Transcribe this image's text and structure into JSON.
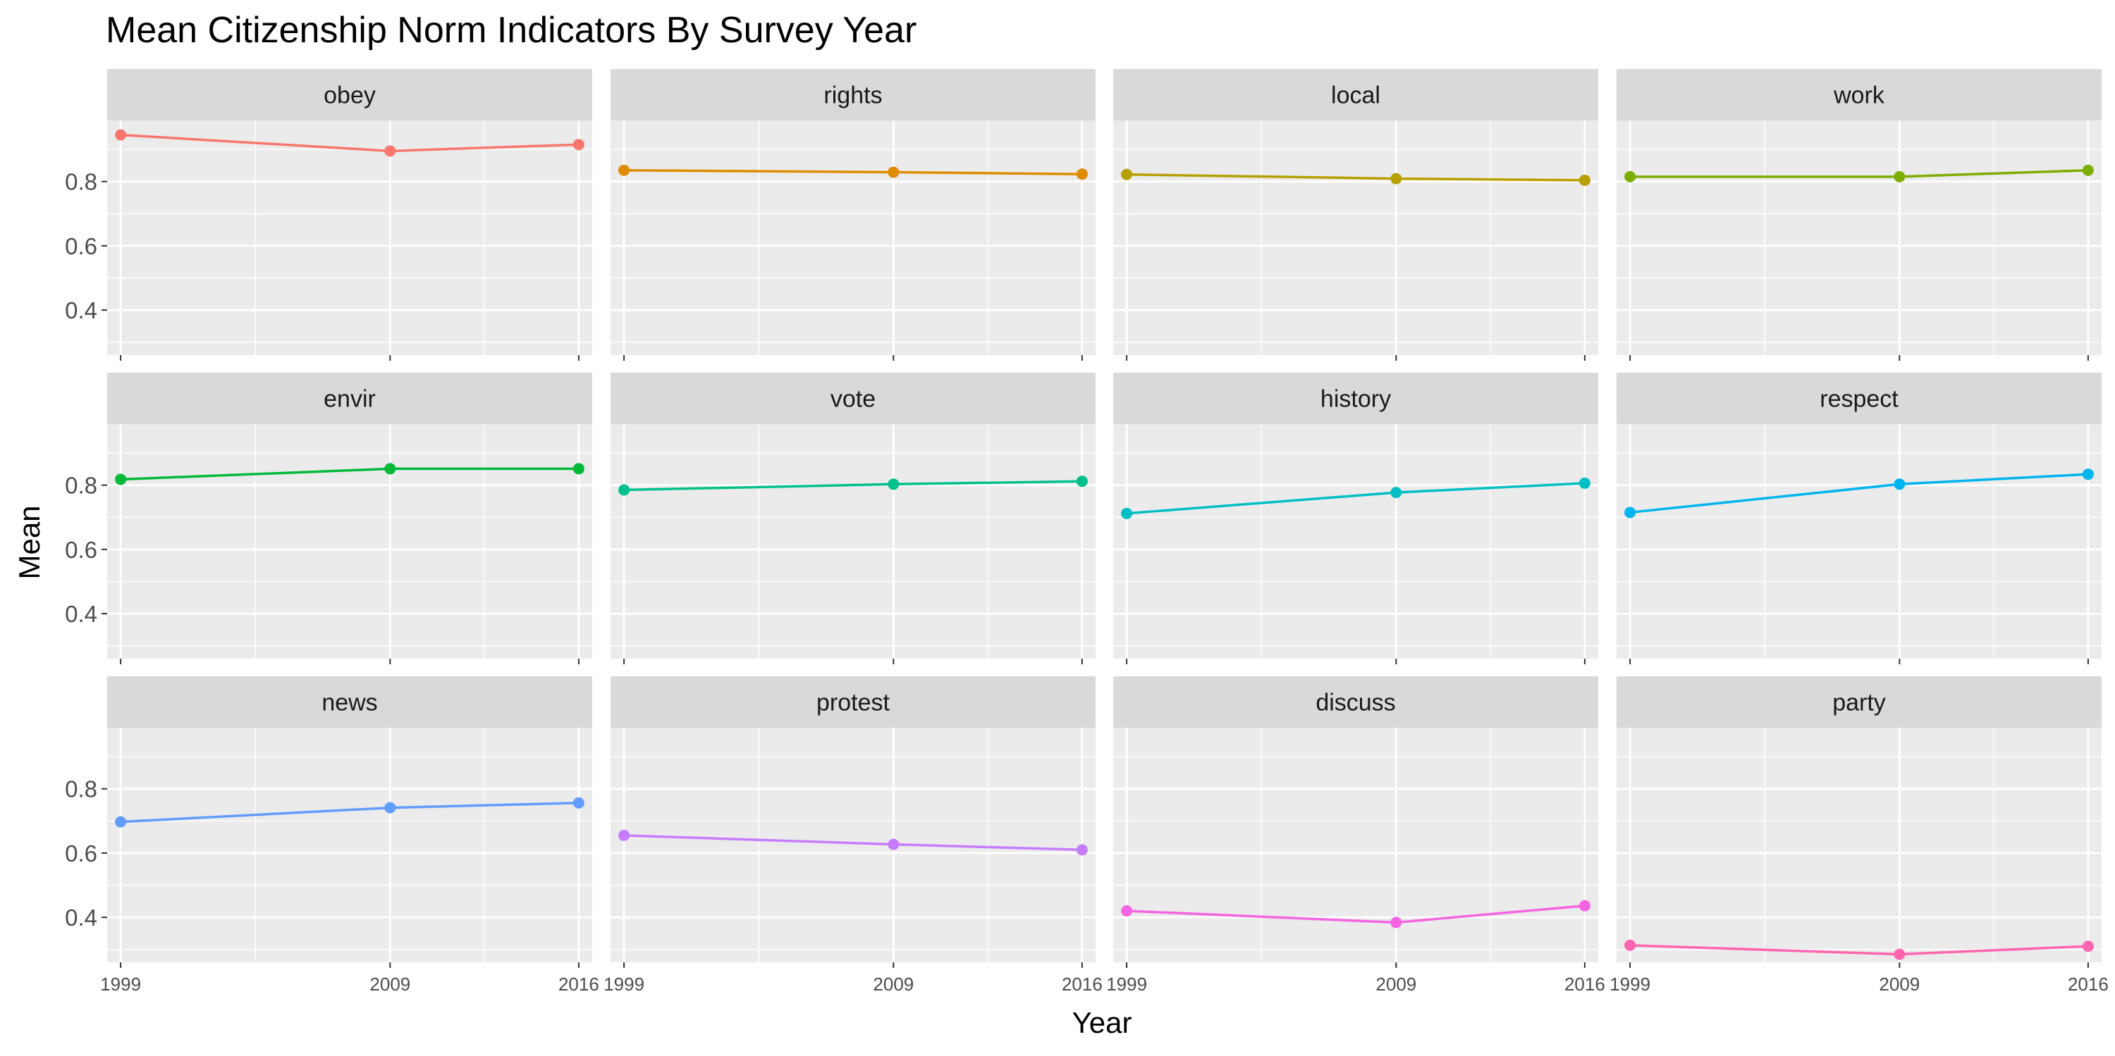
{
  "chart_data": {
    "type": "line",
    "title": "Mean Citizenship Norm Indicators By Survey Year",
    "xlabel": "Year",
    "ylabel": "Mean",
    "x": [
      1999,
      2009,
      2016
    ],
    "x_ticks": [
      "1999",
      "2009",
      "2016"
    ],
    "y_ticks": [
      "0.4",
      "0.6",
      "0.8"
    ],
    "ylim": [
      0.26,
      0.99
    ],
    "grid": true,
    "legend": "none",
    "facet_layout": {
      "rows": 3,
      "cols": 4
    },
    "series": [
      {
        "name": "obey",
        "color": "#F8766D",
        "values": [
          0.945,
          0.895,
          0.915
        ]
      },
      {
        "name": "rights",
        "color": "#DE8C00",
        "values": [
          0.835,
          0.829,
          0.823
        ]
      },
      {
        "name": "local",
        "color": "#B79F00",
        "values": [
          0.822,
          0.809,
          0.804
        ]
      },
      {
        "name": "work",
        "color": "#7CAE00",
        "values": [
          0.815,
          0.815,
          0.835
        ]
      },
      {
        "name": "envir",
        "color": "#00BA38",
        "values": [
          0.818,
          0.851,
          0.851
        ]
      },
      {
        "name": "vote",
        "color": "#00C08B",
        "values": [
          0.785,
          0.803,
          0.812
        ]
      },
      {
        "name": "history",
        "color": "#00BFC4",
        "values": [
          0.712,
          0.777,
          0.806
        ]
      },
      {
        "name": "respect",
        "color": "#00B4F0",
        "values": [
          0.715,
          0.803,
          0.834
        ]
      },
      {
        "name": "news",
        "color": "#619CFF",
        "values": [
          0.697,
          0.741,
          0.756
        ]
      },
      {
        "name": "protest",
        "color": "#C77CFF",
        "values": [
          0.655,
          0.627,
          0.61
        ]
      },
      {
        "name": "discuss",
        "color": "#F564E3",
        "values": [
          0.42,
          0.384,
          0.436
        ]
      },
      {
        "name": "party",
        "color": "#FF64B0",
        "values": [
          0.313,
          0.285,
          0.31
        ]
      }
    ]
  }
}
